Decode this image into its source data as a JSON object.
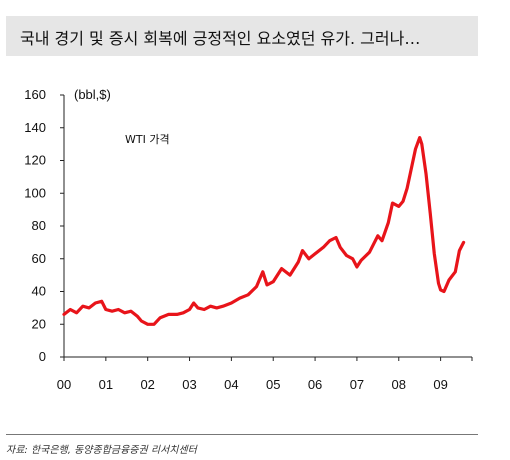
{
  "title": "국내 경기 및 증시 회복에 긍정적인 요소였던 유가. 그러나…",
  "source": "자료: 한국은행, 동양종합금융증권 리서치센터",
  "colors": {
    "line": "#e8141a",
    "title_bg": "#e6e6e6"
  },
  "chart_data": {
    "type": "line",
    "unit_label": "(bbl,$)",
    "annotation": "WTI 가격",
    "x_ticks": [
      "00",
      "01",
      "02",
      "03",
      "04",
      "05",
      "06",
      "07",
      "08",
      "09"
    ],
    "x_range": [
      2000,
      2009.75
    ],
    "ylim": [
      0,
      160
    ],
    "y_ticks": [
      0,
      20,
      40,
      60,
      80,
      100,
      120,
      140,
      160
    ],
    "grid": false,
    "series": [
      {
        "x": [
          2000.0,
          2000.15,
          2000.3,
          2000.45,
          2000.6,
          2000.75,
          2000.9,
          2001.0,
          2001.15,
          2001.3,
          2001.45,
          2001.6,
          2001.75,
          2001.85,
          2002.0,
          2002.15,
          2002.3,
          2002.5,
          2002.7,
          2002.85,
          2003.0,
          2003.1,
          2003.2,
          2003.35,
          2003.5,
          2003.65,
          2003.8,
          2004.0,
          2004.2,
          2004.4,
          2004.6,
          2004.75,
          2004.85,
          2005.0,
          2005.2,
          2005.4,
          2005.6,
          2005.7,
          2005.85,
          2006.0,
          2006.2,
          2006.35,
          2006.5,
          2006.6,
          2006.75,
          2006.9,
          2007.0,
          2007.1,
          2007.3,
          2007.5,
          2007.6,
          2007.75,
          2007.85,
          2008.0,
          2008.1,
          2008.2,
          2008.3,
          2008.4,
          2008.5,
          2008.55,
          2008.65,
          2008.75,
          2008.85,
          2008.95,
          2009.0,
          2009.08,
          2009.2,
          2009.35,
          2009.45,
          2009.55
        ],
        "y": [
          26,
          29,
          27,
          31,
          30,
          33,
          34,
          29,
          28,
          29,
          27,
          28,
          25,
          22,
          20,
          20,
          24,
          26,
          26,
          27,
          29,
          33,
          30,
          29,
          31,
          30,
          31,
          33,
          36,
          38,
          43,
          52,
          44,
          46,
          54,
          50,
          58,
          65,
          60,
          63,
          67,
          71,
          73,
          67,
          62,
          60,
          55,
          59,
          64,
          74,
          71,
          82,
          94,
          92,
          95,
          103,
          115,
          127,
          134,
          130,
          112,
          88,
          63,
          45,
          41,
          40,
          47,
          52,
          65,
          70
        ]
      }
    ]
  }
}
